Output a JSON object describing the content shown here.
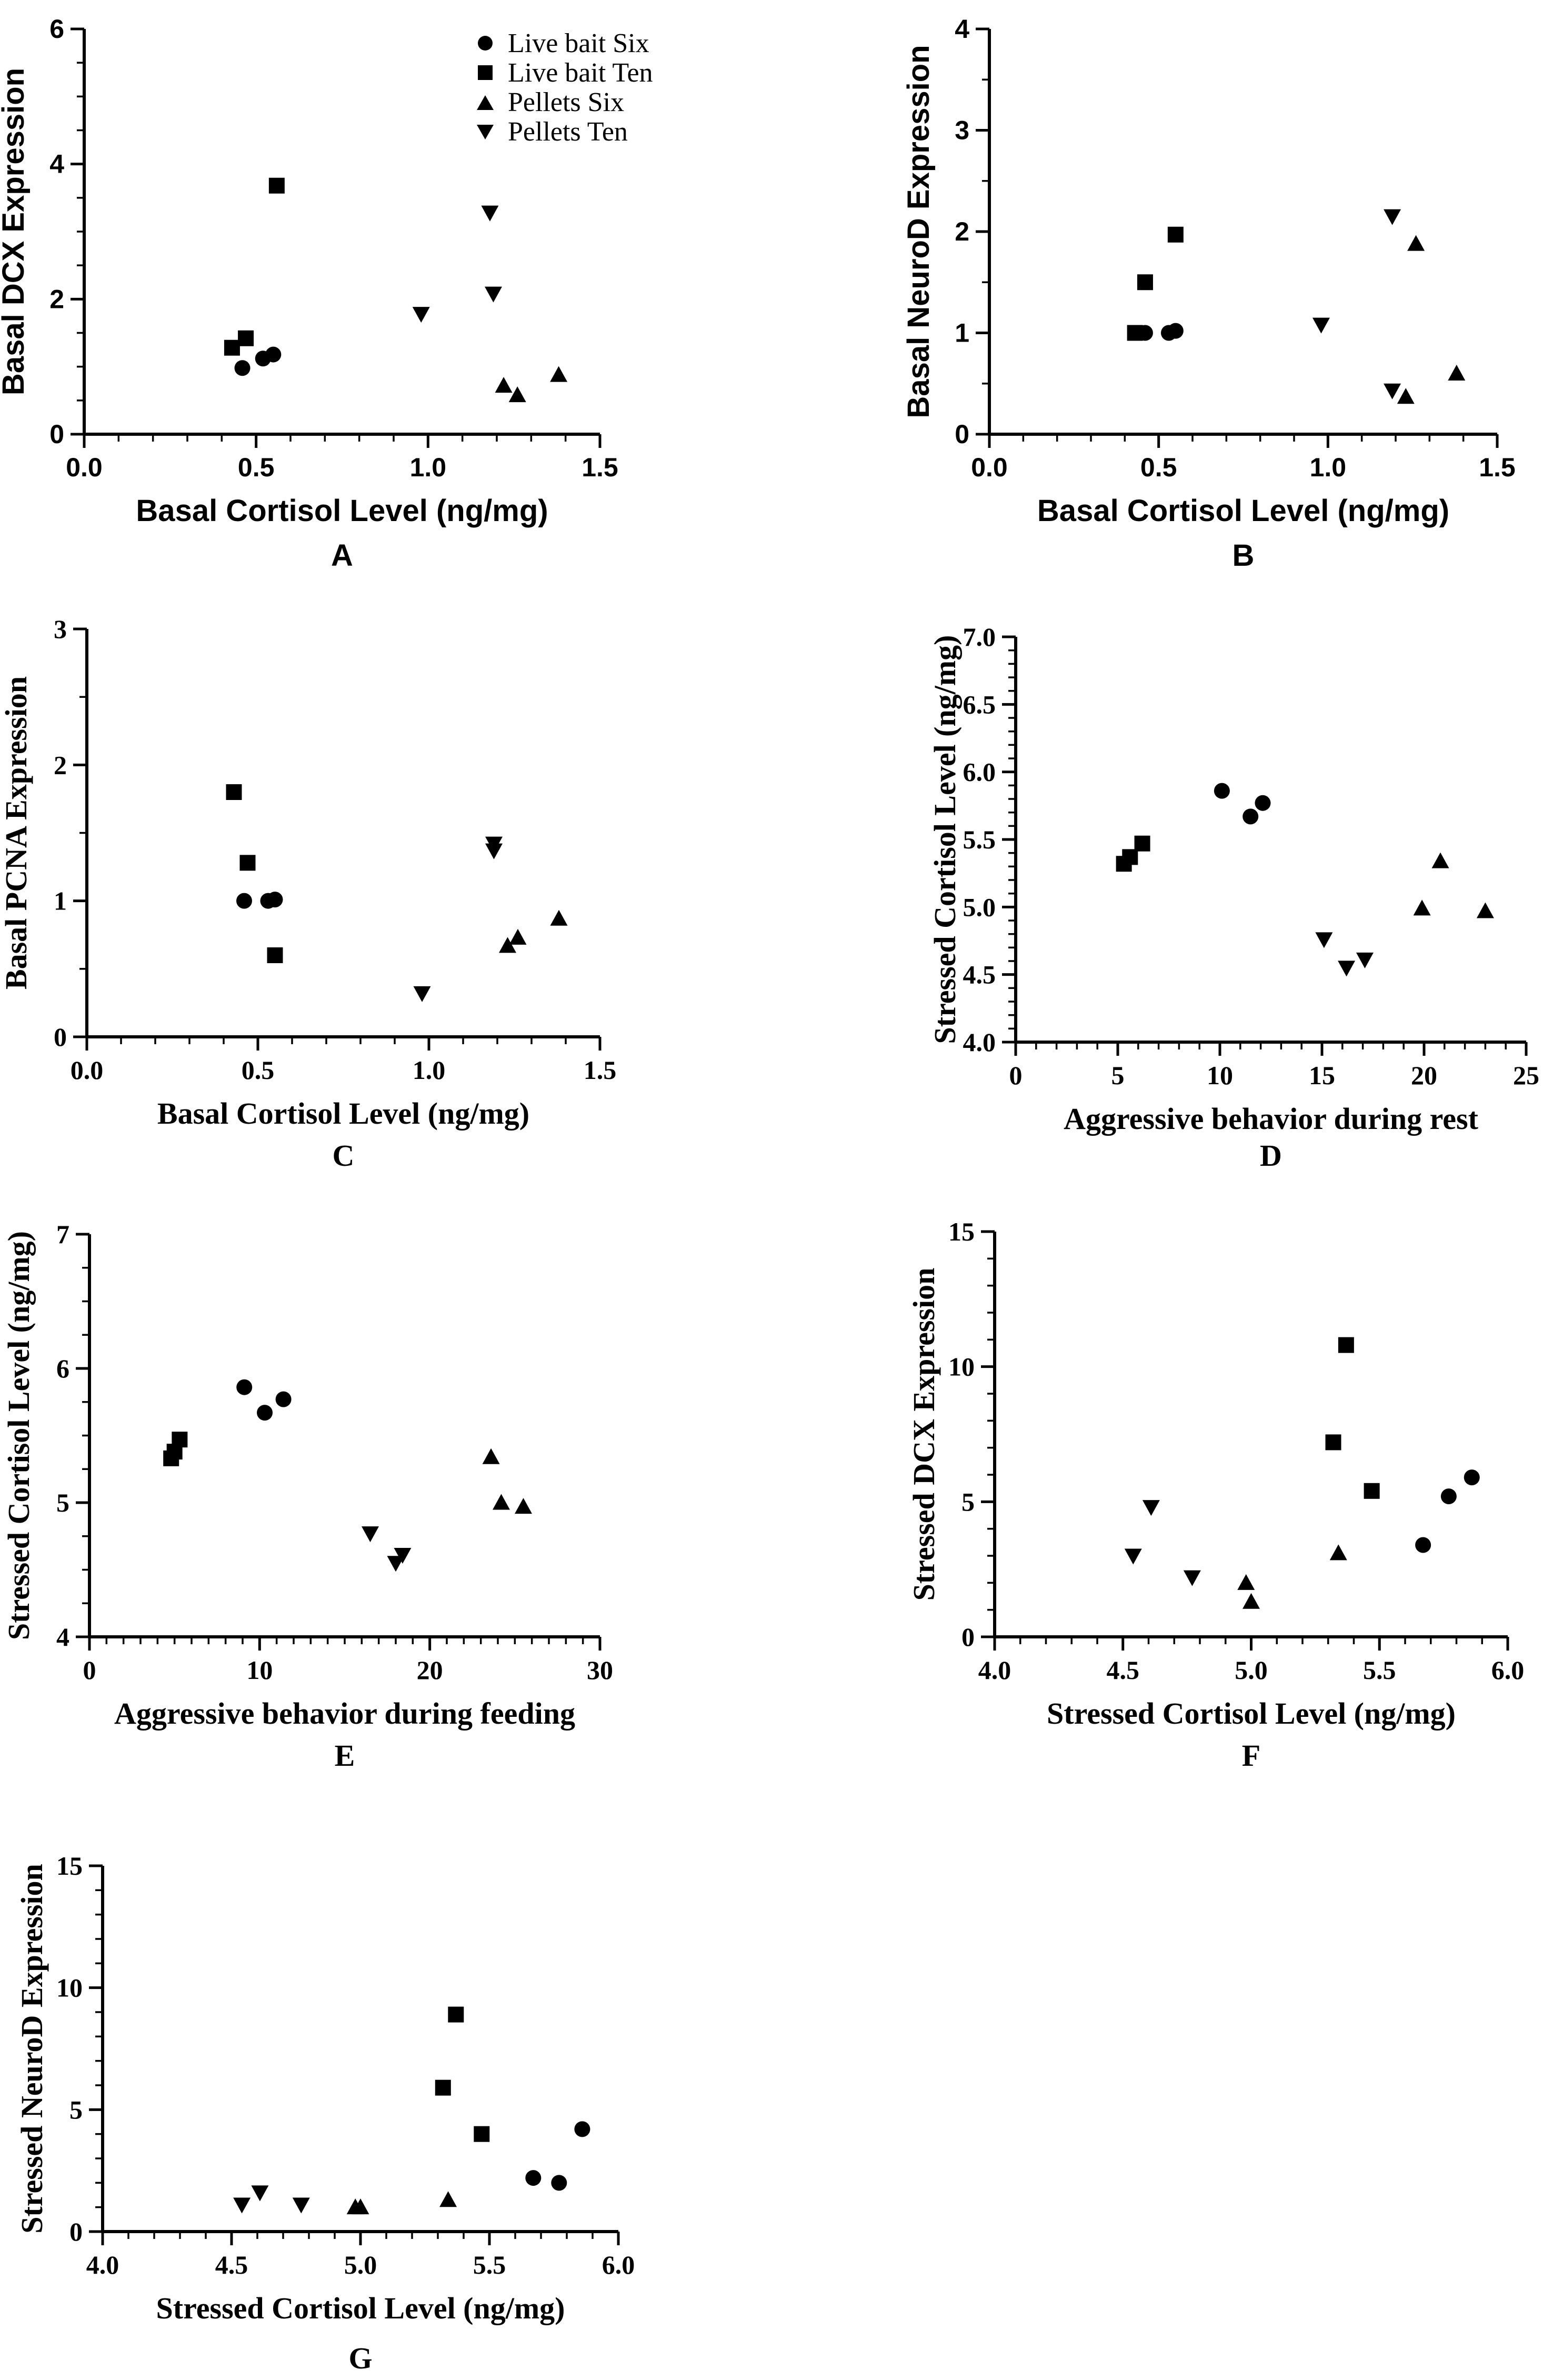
{
  "figure": {
    "legend": [
      {
        "name": "Live bait Six",
        "marker": "circle"
      },
      {
        "name": "Live bait Ten",
        "marker": "square"
      },
      {
        "name": "Pellets Six",
        "marker": "triangle-up"
      },
      {
        "name": "Pellets Ten",
        "marker": "triangle-down"
      }
    ]
  },
  "chart_data": [
    {
      "id": "A",
      "type": "scatter",
      "panel_label": "A",
      "font": "sans",
      "xlabel": "Basal Cortisol Level (ng/mg)",
      "ylabel": "Basal DCX Expression",
      "xlim": [
        0,
        1.5
      ],
      "ylim": [
        0,
        6
      ],
      "xticks": [
        0,
        0.5,
        1.0,
        1.5
      ],
      "xtick_labels": [
        "0.0",
        "0.5",
        "1.0",
        "1.5"
      ],
      "yticks": [
        0,
        2,
        4,
        6
      ],
      "ytick_labels": [
        "0",
        "2",
        "4",
        "6"
      ],
      "x_minor": 0.1,
      "y_minor": 0.5,
      "series": [
        {
          "name": "Live bait Six",
          "marker": "circle",
          "points": [
            [
              0.46,
              0.98
            ],
            [
              0.52,
              1.12
            ],
            [
              0.55,
              1.18
            ]
          ]
        },
        {
          "name": "Live bait Ten",
          "marker": "square",
          "points": [
            [
              0.43,
              1.28
            ],
            [
              0.47,
              1.42
            ],
            [
              0.56,
              3.68
            ]
          ]
        },
        {
          "name": "Pellets Six",
          "marker": "triangle-up",
          "points": [
            [
              1.22,
              0.72
            ],
            [
              1.26,
              0.58
            ],
            [
              1.38,
              0.88
            ]
          ]
        },
        {
          "name": "Pellets Ten",
          "marker": "triangle-down",
          "points": [
            [
              0.98,
              1.78
            ],
            [
              1.18,
              3.28
            ],
            [
              1.19,
              2.08
            ]
          ]
        }
      ]
    },
    {
      "id": "B",
      "type": "scatter",
      "panel_label": "B",
      "font": "sans",
      "xlabel": "Basal Cortisol Level (ng/mg)",
      "ylabel": "Basal NeuroD Expression",
      "xlim": [
        0,
        1.5
      ],
      "ylim": [
        0,
        4
      ],
      "xticks": [
        0,
        0.5,
        1.0,
        1.5
      ],
      "xtick_labels": [
        "0.0",
        "0.5",
        "1.0",
        "1.5"
      ],
      "yticks": [
        0,
        1,
        2,
        3,
        4
      ],
      "ytick_labels": [
        "0",
        "1",
        "2",
        "3",
        "4"
      ],
      "x_minor": 0.1,
      "y_minor": 0.5,
      "series": [
        {
          "name": "Live bait Six",
          "marker": "circle",
          "points": [
            [
              0.46,
              1.0
            ],
            [
              0.53,
              1.0
            ],
            [
              0.55,
              1.02
            ]
          ]
        },
        {
          "name": "Live bait Ten",
          "marker": "square",
          "points": [
            [
              0.43,
              1.0
            ],
            [
              0.46,
              1.5
            ],
            [
              0.55,
              1.97
            ]
          ]
        },
        {
          "name": "Pellets Six",
          "marker": "triangle-up",
          "points": [
            [
              1.26,
              1.88
            ],
            [
              1.23,
              0.37
            ],
            [
              1.38,
              0.6
            ]
          ]
        },
        {
          "name": "Pellets Ten",
          "marker": "triangle-down",
          "points": [
            [
              0.98,
              1.08
            ],
            [
              1.19,
              2.15
            ],
            [
              1.19,
              0.43
            ]
          ]
        }
      ]
    },
    {
      "id": "C",
      "type": "scatter",
      "panel_label": "C",
      "font": "serif",
      "xlabel": "Basal Cortisol Level (ng/mg)",
      "ylabel": "Basal PCNA Expression",
      "xlim": [
        0,
        1.5
      ],
      "ylim": [
        0,
        3
      ],
      "xticks": [
        0,
        0.5,
        1.0,
        1.5
      ],
      "xtick_labels": [
        "0.0",
        "0.5",
        "1.0",
        "1.5"
      ],
      "yticks": [
        0,
        1,
        2,
        3
      ],
      "ytick_labels": [
        "0",
        "1",
        "2",
        "3"
      ],
      "x_minor": 0.1,
      "y_minor": 0.5,
      "series": [
        {
          "name": "Live bait Six",
          "marker": "circle",
          "points": [
            [
              0.46,
              1.0
            ],
            [
              0.53,
              1.0
            ],
            [
              0.55,
              1.01
            ]
          ]
        },
        {
          "name": "Live bait Ten",
          "marker": "square",
          "points": [
            [
              0.43,
              1.8
            ],
            [
              0.47,
              1.28
            ],
            [
              0.55,
              0.6
            ]
          ]
        },
        {
          "name": "Pellets Six",
          "marker": "triangle-up",
          "points": [
            [
              1.23,
              0.67
            ],
            [
              1.26,
              0.73
            ],
            [
              1.38,
              0.87
            ]
          ]
        },
        {
          "name": "Pellets Ten",
          "marker": "triangle-down",
          "points": [
            [
              0.98,
              0.32
            ],
            [
              1.19,
              1.42
            ],
            [
              1.19,
              1.37
            ]
          ]
        }
      ]
    },
    {
      "id": "D",
      "type": "scatter",
      "panel_label": "D",
      "font": "serif",
      "xlabel": "Aggressive behavior during rest",
      "ylabel": "Stressed Cortisol Level (ng/mg)",
      "xlim": [
        0,
        25
      ],
      "ylim": [
        4.0,
        7.0
      ],
      "xticks": [
        0,
        5,
        10,
        15,
        20,
        25
      ],
      "xtick_labels": [
        "0",
        "5",
        "10",
        "15",
        "20",
        "25"
      ],
      "yticks": [
        4.0,
        4.5,
        5.0,
        5.5,
        6.0,
        6.5,
        7.0
      ],
      "ytick_labels": [
        "4.0",
        "4.5",
        "5.0",
        "5.5",
        "6.0",
        "6.5",
        "7.0"
      ],
      "x_minor": 1,
      "y_minor": 0.1,
      "series": [
        {
          "name": "Live bait Six",
          "marker": "circle",
          "points": [
            [
              10.1,
              5.86
            ],
            [
              11.5,
              5.67
            ],
            [
              12.1,
              5.77
            ]
          ]
        },
        {
          "name": "Live bait Ten",
          "marker": "square",
          "points": [
            [
              5.3,
              5.32
            ],
            [
              5.6,
              5.37
            ],
            [
              6.2,
              5.47
            ]
          ]
        },
        {
          "name": "Pellets Six",
          "marker": "triangle-up",
          "points": [
            [
              19.9,
              4.99
            ],
            [
              20.8,
              5.34
            ],
            [
              23.0,
              4.97
            ]
          ]
        },
        {
          "name": "Pellets Ten",
          "marker": "triangle-down",
          "points": [
            [
              15.1,
              4.76
            ],
            [
              16.2,
              4.55
            ],
            [
              17.1,
              4.61
            ]
          ]
        }
      ]
    },
    {
      "id": "E",
      "type": "scatter",
      "panel_label": "E",
      "font": "serif",
      "xlabel": "Aggressive behavior during feeding",
      "ylabel": "Stressed Cortisol Level (ng/mg)",
      "xlim": [
        0,
        30
      ],
      "ylim": [
        4,
        7
      ],
      "xticks": [
        0,
        10,
        20,
        30
      ],
      "xtick_labels": [
        "0",
        "10",
        "20",
        "30"
      ],
      "yticks": [
        4,
        5,
        6,
        7
      ],
      "ytick_labels": [
        "4",
        "5",
        "6",
        "7"
      ],
      "x_minor": 1,
      "y_minor": 0.25,
      "series": [
        {
          "name": "Live bait Six",
          "marker": "circle",
          "points": [
            [
              9.1,
              5.86
            ],
            [
              10.3,
              5.67
            ],
            [
              11.4,
              5.77
            ]
          ]
        },
        {
          "name": "Live bait Ten",
          "marker": "square",
          "points": [
            [
              4.8,
              5.33
            ],
            [
              5.0,
              5.38
            ],
            [
              5.3,
              5.47
            ]
          ]
        },
        {
          "name": "Pellets Six",
          "marker": "triangle-up",
          "points": [
            [
              23.6,
              5.34
            ],
            [
              24.2,
              5.0
            ],
            [
              25.5,
              4.97
            ]
          ]
        },
        {
          "name": "Pellets Ten",
          "marker": "triangle-down",
          "points": [
            [
              16.5,
              4.77
            ],
            [
              18.0,
              4.55
            ],
            [
              18.4,
              4.61
            ]
          ]
        }
      ]
    },
    {
      "id": "F",
      "type": "scatter",
      "panel_label": "F",
      "font": "serif",
      "xlabel": "Stressed Cortisol Level (ng/mg)",
      "ylabel": "Stressed DCX Expression",
      "xlim": [
        4.0,
        6.0
      ],
      "ylim": [
        0,
        15
      ],
      "xticks": [
        4.0,
        4.5,
        5.0,
        5.5,
        6.0
      ],
      "xtick_labels": [
        "4.0",
        "4.5",
        "5.0",
        "5.5",
        "6.0"
      ],
      "yticks": [
        0,
        5,
        10,
        15
      ],
      "ytick_labels": [
        "0",
        "5",
        "10",
        "15"
      ],
      "x_minor": 0.1,
      "y_minor": 1,
      "series": [
        {
          "name": "Live bait Six",
          "marker": "circle",
          "points": [
            [
              5.67,
              3.4
            ],
            [
              5.77,
              5.2
            ],
            [
              5.86,
              5.9
            ]
          ]
        },
        {
          "name": "Live bait Ten",
          "marker": "square",
          "points": [
            [
              5.32,
              7.2
            ],
            [
              5.37,
              10.8
            ],
            [
              5.47,
              5.4
            ]
          ]
        },
        {
          "name": "Pellets Six",
          "marker": "triangle-up",
          "points": [
            [
              4.98,
              2.0
            ],
            [
              5.0,
              1.3
            ],
            [
              5.34,
              3.1
            ]
          ]
        },
        {
          "name": "Pellets Ten",
          "marker": "triangle-down",
          "points": [
            [
              4.54,
              3.0
            ],
            [
              4.61,
              4.8
            ],
            [
              4.77,
              2.2
            ]
          ]
        }
      ]
    },
    {
      "id": "G",
      "type": "scatter",
      "panel_label": "G",
      "font": "serif",
      "xlabel": "Stressed Cortisol Level (ng/mg)",
      "ylabel": "Stressed NeuroD Expression",
      "xlim": [
        4.0,
        6.0
      ],
      "ylim": [
        0,
        15
      ],
      "xticks": [
        4.0,
        4.5,
        5.0,
        5.5,
        6.0
      ],
      "xtick_labels": [
        "4.0",
        "4.5",
        "5.0",
        "5.5",
        "6.0"
      ],
      "yticks": [
        0,
        5,
        10,
        15
      ],
      "ytick_labels": [
        "0",
        "5",
        "10",
        "15"
      ],
      "x_minor": 0.1,
      "y_minor": 1,
      "series": [
        {
          "name": "Live bait Six",
          "marker": "circle",
          "points": [
            [
              5.67,
              2.2
            ],
            [
              5.77,
              2.0
            ],
            [
              5.86,
              4.2
            ]
          ]
        },
        {
          "name": "Live bait Ten",
          "marker": "square",
          "points": [
            [
              5.32,
              5.9
            ],
            [
              5.37,
              8.9
            ],
            [
              5.47,
              4.0
            ]
          ]
        },
        {
          "name": "Pellets Six",
          "marker": "triangle-up",
          "points": [
            [
              4.98,
              1.0
            ],
            [
              5.0,
              1.0
            ],
            [
              5.34,
              1.3
            ]
          ]
        },
        {
          "name": "Pellets Ten",
          "marker": "triangle-down",
          "points": [
            [
              4.54,
              1.1
            ],
            [
              4.61,
              1.6
            ],
            [
              4.77,
              1.1
            ]
          ]
        }
      ]
    }
  ]
}
